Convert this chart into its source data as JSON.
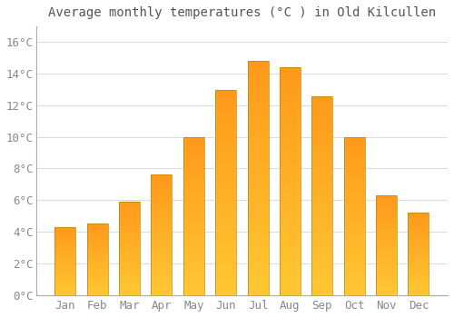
{
  "title": "Average monthly temperatures (°C ) in Old Kilcullen",
  "months": [
    "Jan",
    "Feb",
    "Mar",
    "Apr",
    "May",
    "Jun",
    "Jul",
    "Aug",
    "Sep",
    "Oct",
    "Nov",
    "Dec"
  ],
  "values": [
    4.3,
    4.5,
    5.9,
    7.6,
    10.0,
    13.0,
    14.8,
    14.4,
    12.6,
    10.0,
    6.3,
    5.2
  ],
  "bar_color": "#FFA500",
  "bar_edge_color": "#CC7700",
  "background_color": "#FFFFFF",
  "grid_color": "#DDDDDD",
  "ylim": [
    0,
    17
  ],
  "yticks": [
    0,
    2,
    4,
    6,
    8,
    10,
    12,
    14,
    16
  ],
  "title_fontsize": 10,
  "tick_fontsize": 9,
  "bar_width": 0.65
}
